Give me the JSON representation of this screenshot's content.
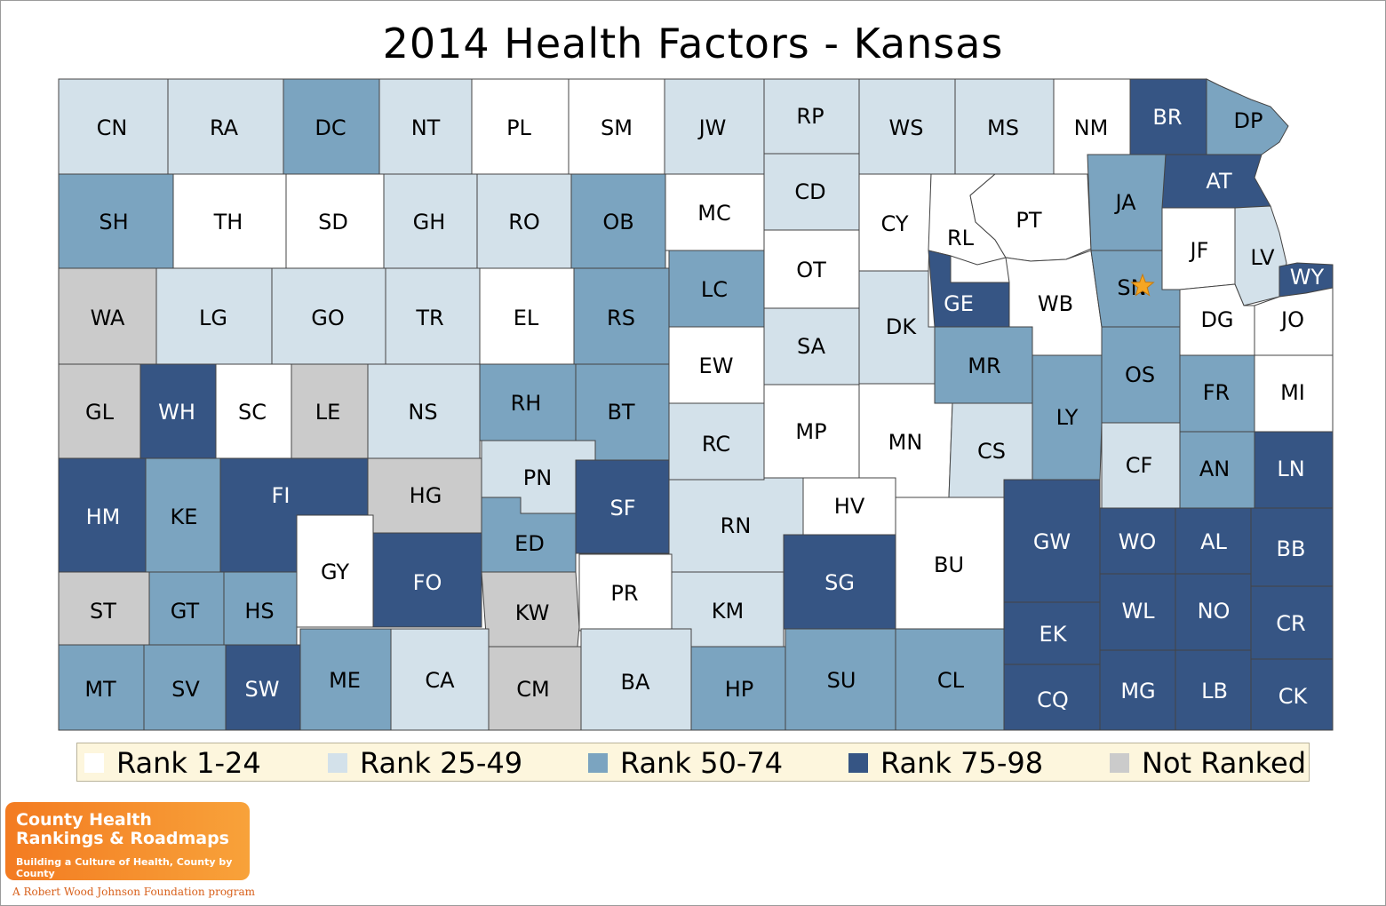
{
  "title": "2014 Health Factors - Kansas",
  "colors": {
    "rank_1_24": "#ffffff",
    "rank_25_49": "#d3e1ea",
    "rank_50_74": "#7ba4c0",
    "rank_75_98": "#365584",
    "not_ranked": "#cbcbcb",
    "border": "#444444",
    "star": "#f5a623"
  },
  "legend": [
    {
      "label": "Rank 1-24",
      "color": "#ffffff"
    },
    {
      "label": "Rank 25-49",
      "color": "#d3e1ea"
    },
    {
      "label": "Rank 50-74",
      "color": "#7ba4c0"
    },
    {
      "label": "Rank 75-98",
      "color": "#365584"
    },
    {
      "label": "Not Ranked",
      "color": "#cbcbcb"
    }
  ],
  "counties": [
    {
      "code": "CN",
      "cat": "rank_25_49"
    },
    {
      "code": "RA",
      "cat": "rank_25_49"
    },
    {
      "code": "DC",
      "cat": "rank_50_74"
    },
    {
      "code": "NT",
      "cat": "rank_25_49"
    },
    {
      "code": "PL",
      "cat": "rank_1_24"
    },
    {
      "code": "SM",
      "cat": "rank_1_24"
    },
    {
      "code": "JW",
      "cat": "rank_25_49"
    },
    {
      "code": "RP",
      "cat": "rank_25_49"
    },
    {
      "code": "WS",
      "cat": "rank_25_49"
    },
    {
      "code": "MS",
      "cat": "rank_25_49"
    },
    {
      "code": "NM",
      "cat": "rank_1_24"
    },
    {
      "code": "BR",
      "cat": "rank_75_98"
    },
    {
      "code": "DP",
      "cat": "rank_50_74"
    },
    {
      "code": "SH",
      "cat": "rank_50_74"
    },
    {
      "code": "TH",
      "cat": "rank_1_24"
    },
    {
      "code": "SD",
      "cat": "rank_1_24"
    },
    {
      "code": "GH",
      "cat": "rank_25_49"
    },
    {
      "code": "RO",
      "cat": "rank_25_49"
    },
    {
      "code": "OB",
      "cat": "rank_50_74"
    },
    {
      "code": "MC",
      "cat": "rank_1_24"
    },
    {
      "code": "CD",
      "cat": "rank_25_49"
    },
    {
      "code": "CY",
      "cat": "rank_1_24"
    },
    {
      "code": "RL",
      "cat": "rank_1_24"
    },
    {
      "code": "PT",
      "cat": "rank_1_24"
    },
    {
      "code": "JA",
      "cat": "rank_50_74"
    },
    {
      "code": "AT",
      "cat": "rank_75_98"
    },
    {
      "code": "JF",
      "cat": "rank_1_24"
    },
    {
      "code": "LV",
      "cat": "rank_25_49"
    },
    {
      "code": "WY",
      "cat": "rank_75_98"
    },
    {
      "code": "WA",
      "cat": "not_ranked"
    },
    {
      "code": "LG",
      "cat": "rank_25_49"
    },
    {
      "code": "GO",
      "cat": "rank_25_49"
    },
    {
      "code": "TR",
      "cat": "rank_25_49"
    },
    {
      "code": "EL",
      "cat": "rank_1_24"
    },
    {
      "code": "RS",
      "cat": "rank_50_74"
    },
    {
      "code": "LC",
      "cat": "rank_50_74"
    },
    {
      "code": "OT",
      "cat": "rank_1_24"
    },
    {
      "code": "DK",
      "cat": "rank_25_49"
    },
    {
      "code": "GE",
      "cat": "rank_75_98"
    },
    {
      "code": "WB",
      "cat": "rank_1_24"
    },
    {
      "code": "SN",
      "cat": "rank_50_74"
    },
    {
      "code": "DG",
      "cat": "rank_1_24"
    },
    {
      "code": "JO",
      "cat": "rank_1_24"
    },
    {
      "code": "GL",
      "cat": "not_ranked"
    },
    {
      "code": "WH",
      "cat": "rank_75_98"
    },
    {
      "code": "SC",
      "cat": "rank_1_24"
    },
    {
      "code": "LE",
      "cat": "not_ranked"
    },
    {
      "code": "NS",
      "cat": "rank_25_49"
    },
    {
      "code": "RH",
      "cat": "rank_50_74"
    },
    {
      "code": "BT",
      "cat": "rank_50_74"
    },
    {
      "code": "EW",
      "cat": "rank_1_24"
    },
    {
      "code": "SA",
      "cat": "rank_25_49"
    },
    {
      "code": "MR",
      "cat": "rank_50_74"
    },
    {
      "code": "OS",
      "cat": "rank_50_74"
    },
    {
      "code": "FR",
      "cat": "rank_50_74"
    },
    {
      "code": "MI",
      "cat": "rank_1_24"
    },
    {
      "code": "LY",
      "cat": "rank_50_74"
    },
    {
      "code": "RC",
      "cat": "rank_25_49"
    },
    {
      "code": "MP",
      "cat": "rank_1_24"
    },
    {
      "code": "MN",
      "cat": "rank_1_24"
    },
    {
      "code": "CS",
      "cat": "rank_25_49"
    },
    {
      "code": "CF",
      "cat": "rank_25_49"
    },
    {
      "code": "AN",
      "cat": "rank_50_74"
    },
    {
      "code": "LN",
      "cat": "rank_75_98"
    },
    {
      "code": "HM",
      "cat": "rank_75_98"
    },
    {
      "code": "KE",
      "cat": "rank_50_74"
    },
    {
      "code": "FI",
      "cat": "rank_75_98"
    },
    {
      "code": "HG",
      "cat": "not_ranked"
    },
    {
      "code": "PN",
      "cat": "rank_25_49"
    },
    {
      "code": "SF",
      "cat": "rank_75_98"
    },
    {
      "code": "RN",
      "cat": "rank_25_49"
    },
    {
      "code": "HV",
      "cat": "rank_1_24"
    },
    {
      "code": "GW",
      "cat": "rank_75_98"
    },
    {
      "code": "WO",
      "cat": "rank_75_98"
    },
    {
      "code": "AL",
      "cat": "rank_75_98"
    },
    {
      "code": "BB",
      "cat": "rank_75_98"
    },
    {
      "code": "ED",
      "cat": "rank_50_74"
    },
    {
      "code": "GY",
      "cat": "rank_1_24"
    },
    {
      "code": "FO",
      "cat": "rank_75_98"
    },
    {
      "code": "KW",
      "cat": "not_ranked"
    },
    {
      "code": "PR",
      "cat": "rank_1_24"
    },
    {
      "code": "KM",
      "cat": "rank_25_49"
    },
    {
      "code": "SG",
      "cat": "rank_75_98"
    },
    {
      "code": "BU",
      "cat": "rank_1_24"
    },
    {
      "code": "EK",
      "cat": "rank_75_98"
    },
    {
      "code": "WL",
      "cat": "rank_75_98"
    },
    {
      "code": "NO",
      "cat": "rank_75_98"
    },
    {
      "code": "CR",
      "cat": "rank_75_98"
    },
    {
      "code": "ST",
      "cat": "not_ranked"
    },
    {
      "code": "GT",
      "cat": "rank_50_74"
    },
    {
      "code": "HS",
      "cat": "rank_50_74"
    },
    {
      "code": "MT",
      "cat": "rank_50_74"
    },
    {
      "code": "SV",
      "cat": "rank_50_74"
    },
    {
      "code": "SW",
      "cat": "rank_75_98"
    },
    {
      "code": "ME",
      "cat": "rank_50_74"
    },
    {
      "code": "CA",
      "cat": "rank_25_49"
    },
    {
      "code": "CM",
      "cat": "not_ranked"
    },
    {
      "code": "BA",
      "cat": "rank_25_49"
    },
    {
      "code": "HP",
      "cat": "rank_50_74"
    },
    {
      "code": "SU",
      "cat": "rank_50_74"
    },
    {
      "code": "CL",
      "cat": "rank_50_74"
    },
    {
      "code": "CQ",
      "cat": "rank_75_98"
    },
    {
      "code": "MG",
      "cat": "rank_75_98"
    },
    {
      "code": "LB",
      "cat": "rank_75_98"
    },
    {
      "code": "CK",
      "cat": "rank_75_98"
    }
  ],
  "capital_marker": {
    "county": "SN",
    "icon": "star-icon"
  },
  "logo": {
    "line1": "County Health",
    "line2": "Rankings & Roadmaps",
    "tagline": "Building a Culture of Health, County by County",
    "sub": "A Robert Wood Johnson Foundation program"
  }
}
